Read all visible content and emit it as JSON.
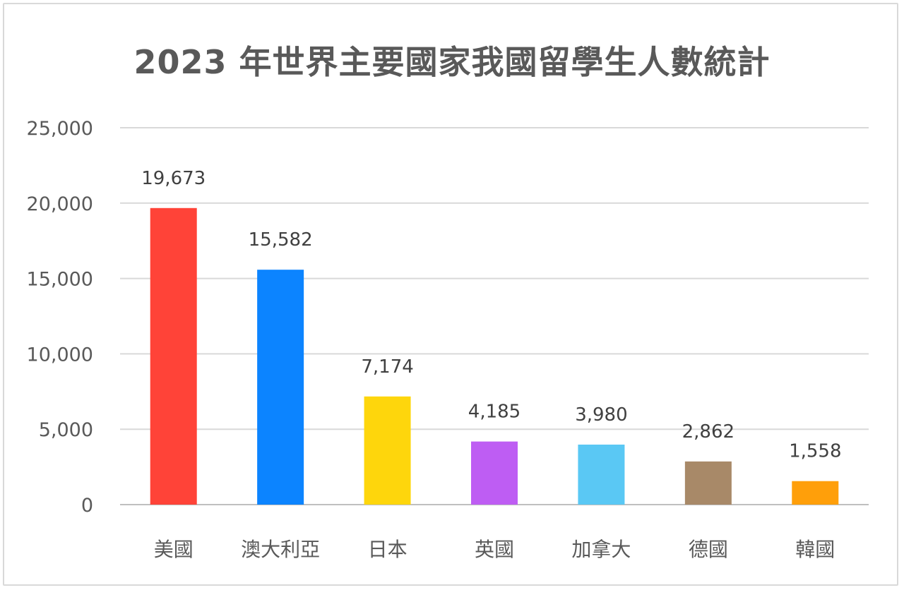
{
  "chart_data": {
    "type": "bar",
    "title": "2023 年世界主要國家我國留學生人數統計",
    "categories": [
      "美國",
      "澳大利亞",
      "日本",
      "英國",
      "加拿大",
      "德國",
      "韓國"
    ],
    "values": [
      19673,
      15582,
      7174,
      4185,
      3980,
      2862,
      1558
    ],
    "data_labels": [
      "19,673",
      "15,582",
      "7,174",
      "4,185",
      "3,980",
      "2,862",
      "1,558"
    ],
    "colors": [
      "#ff4338",
      "#0c84ff",
      "#fed60c",
      "#be5df3",
      "#5ac8f4",
      "#a88968",
      "#ff9f0a"
    ],
    "ylim": [
      0,
      25000
    ],
    "yticks": [
      0,
      5000,
      10000,
      15000,
      20000,
      25000
    ],
    "ytick_labels": [
      "0",
      "5,000",
      "10,000",
      "15,000",
      "20,000",
      "25,000"
    ],
    "xlabel": "",
    "ylabel": "",
    "grid": true,
    "legend": "none"
  }
}
